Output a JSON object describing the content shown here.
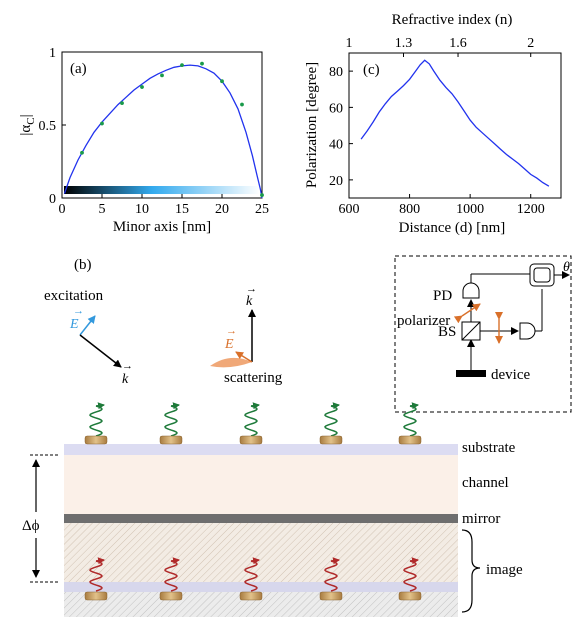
{
  "chart_data": [
    {
      "type": "scatter",
      "panel_label": "(a)",
      "xlabel": "Minor axis [nm]",
      "ylabel": "|α",
      "ylabel_sub": "C",
      "ylabel_close": "|",
      "xlim": [
        0,
        25
      ],
      "ylim": [
        0,
        1
      ],
      "xticks": [
        0,
        5,
        10,
        15,
        20,
        25
      ],
      "yticks": [
        0,
        0.5,
        1
      ],
      "ytick_labels": [
        "0",
        "0.5",
        "1"
      ],
      "grid": false,
      "colorbar_colors": [
        "#000000",
        "#33aaee",
        "#ffffff"
      ],
      "series": [
        {
          "kind": "points",
          "color": "#1a9a4a",
          "x": [
            2.5,
            5,
            7.5,
            10,
            12.5,
            15,
            17.5,
            20,
            22.5,
            25
          ],
          "y": [
            0.31,
            0.51,
            0.65,
            0.76,
            0.84,
            0.91,
            0.92,
            0.8,
            0.64,
            0.02
          ]
        },
        {
          "kind": "line",
          "color": "#2233ee",
          "x": [
            0.3,
            1,
            2,
            3,
            4,
            5,
            6,
            7,
            8,
            9,
            10,
            11,
            12,
            13,
            14,
            15,
            16,
            17,
            18,
            19,
            20,
            21,
            22,
            23,
            23.8,
            24.4,
            24.8,
            25
          ],
          "y": [
            0.03,
            0.14,
            0.26,
            0.36,
            0.45,
            0.52,
            0.58,
            0.64,
            0.69,
            0.74,
            0.78,
            0.82,
            0.85,
            0.875,
            0.895,
            0.905,
            0.91,
            0.905,
            0.885,
            0.855,
            0.8,
            0.72,
            0.61,
            0.45,
            0.29,
            0.15,
            0.06,
            0.0
          ]
        }
      ]
    },
    {
      "type": "line",
      "panel_label": "(c)",
      "xlabel": "Distance (d) [nm]",
      "ylabel": "Polarization [degree]",
      "top_xlabel": "Refractive index (n)",
      "xlim": [
        600,
        1300
      ],
      "ylim": [
        10,
        90
      ],
      "xticks": [
        600,
        800,
        1000,
        1200
      ],
      "yticks": [
        20,
        40,
        60,
        80
      ],
      "top_ticks": [
        {
          "label": "1",
          "d": 600
        },
        {
          "label": "1.3",
          "d": 780
        },
        {
          "label": "1.6",
          "d": 960
        },
        {
          "label": "2",
          "d": 1200
        }
      ],
      "grid": false,
      "series": [
        {
          "color": "#2233ee",
          "x": [
            640,
            660,
            680,
            700,
            720,
            740,
            760,
            780,
            800,
            820,
            835,
            850,
            865,
            880,
            900,
            920,
            940,
            960,
            980,
            1000,
            1020,
            1040,
            1060,
            1080,
            1100,
            1120,
            1140,
            1160,
            1180,
            1200,
            1220,
            1240,
            1260
          ],
          "y": [
            42.5,
            47,
            52,
            57.5,
            62,
            66,
            69,
            72,
            75.5,
            80,
            83.5,
            86,
            84,
            80,
            75,
            71,
            67.5,
            63,
            58,
            53,
            49,
            46,
            43,
            40,
            37,
            34,
            31.5,
            29,
            26,
            23,
            21,
            18.5,
            16.5
          ]
        }
      ]
    }
  ],
  "diagram": {
    "panel_label": "(b)",
    "excitation_label": "excitation",
    "scattering_label": "scattering",
    "field_label": "E",
    "wavevector_label": "k",
    "layer_labels": {
      "substrate": "substrate",
      "channel": "channel",
      "mirror": "mirror",
      "image": "image"
    },
    "phase_label": "Δϕ",
    "setup": {
      "pd_label": "PD",
      "polarizer_label": "polarizer",
      "bs_label": "BS",
      "device_label": "device",
      "output_label": "θ"
    },
    "colors": {
      "emitter_upper": "#1e7a3a",
      "emitter_lower": "#b02a2a",
      "field_blue": "#3399dd",
      "field_orange": "#d9702a",
      "substrate": "#dcdcf2",
      "channel": "#fbf0e8",
      "mirror": "#6e6e6e",
      "disk": "#c9a168"
    }
  }
}
